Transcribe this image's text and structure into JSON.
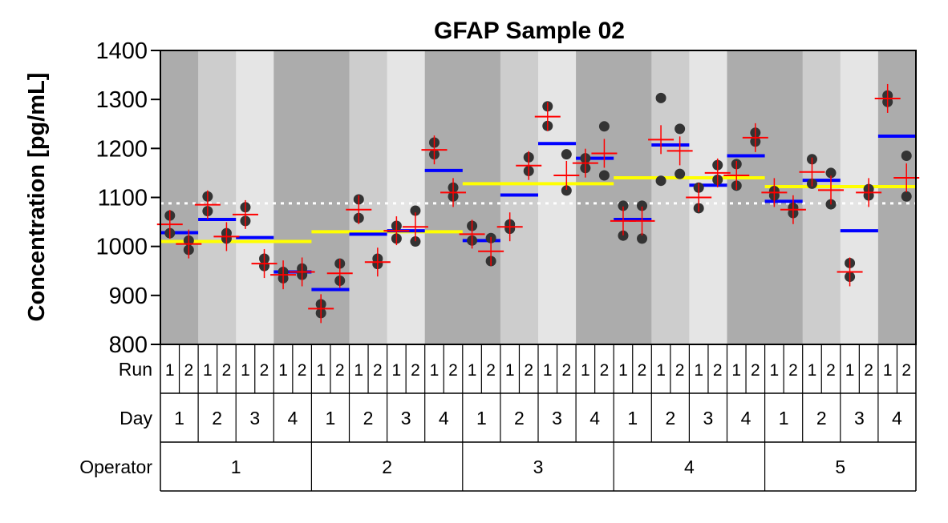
{
  "chart_data": {
    "type": "scatter",
    "title": "GFAP Sample 02",
    "ylabel": "Concentration [pg/mL]",
    "ylim": [
      800,
      1400
    ],
    "yticks": [
      800,
      900,
      1000,
      1100,
      1200,
      1300,
      1400
    ],
    "reference_line": 1088,
    "table": {
      "run_label": "Run",
      "day_label": "Day",
      "operator_label": "Operator",
      "operators": [
        "1",
        "2",
        "3",
        "4",
        "5"
      ],
      "days": [
        "1",
        "2",
        "3",
        "4"
      ],
      "runs": [
        "1",
        "2"
      ]
    },
    "operator_means": [
      1010,
      1030,
      1128,
      1140,
      1122
    ],
    "day_means": [
      [
        1028,
        1055,
        1018,
        948
      ],
      [
        912,
        1025,
        1032,
        1155
      ],
      [
        1012,
        1105,
        1210,
        1180
      ],
      [
        1055,
        1207,
        1125,
        1185
      ],
      [
        1092,
        1135,
        1032,
        1225
      ]
    ],
    "run_means": [
      [
        [
          1045,
          1005
        ],
        [
          1085,
          1020
        ],
        [
          1065,
          965
        ],
        [
          942,
          948
        ]
      ],
      [
        [
          873,
          945
        ],
        [
          1075,
          968
        ],
        [
          1032,
          1040
        ],
        [
          1197,
          1110
        ]
      ],
      [
        [
          1025,
          990
        ],
        [
          1040,
          1165
        ],
        [
          1265,
          1145
        ],
        [
          1170,
          1190
        ]
      ],
      [
        [
          1052,
          1052
        ],
        [
          1218,
          1195
        ],
        [
          1100,
          1150
        ],
        [
          1145,
          1222
        ]
      ],
      [
        [
          1110,
          1075
        ],
        [
          1152,
          1115
        ],
        [
          948,
          1110
        ],
        [
          1302,
          1140
        ]
      ]
    ],
    "points": [
      [
        [
          [
            1063,
            1027
          ],
          [
            1012,
            993
          ]
        ],
        [
          [
            1102,
            1072
          ],
          [
            1027,
            1016
          ]
        ],
        [
          [
            1080,
            1052
          ],
          [
            975,
            960
          ]
        ],
        [
          [
            948,
            935
          ],
          [
            955,
            942
          ]
        ]
      ],
      [
        [
          [
            882,
            864
          ],
          [
            965,
            930
          ]
        ],
        [
          [
            1096,
            1058
          ],
          [
            975,
            964
          ]
        ],
        [
          [
            1042,
            1016
          ],
          [
            1073,
            1010
          ]
        ],
        [
          [
            1212,
            1188
          ],
          [
            1120,
            1102
          ]
        ]
      ],
      [
        [
          [
            1042,
            1012
          ],
          [
            1017,
            970
          ]
        ],
        [
          [
            1045,
            1036
          ],
          [
            1182,
            1154
          ]
        ],
        [
          [
            1286,
            1246
          ],
          [
            1188,
            1114
          ]
        ],
        [
          [
            1180,
            1160
          ],
          [
            1245,
            1145
          ]
        ]
      ],
      [
        [
          [
            1083,
            1022
          ],
          [
            1083,
            1016
          ]
        ],
        [
          [
            1303,
            1134
          ],
          [
            1240,
            1148
          ]
        ],
        [
          [
            1120,
            1078
          ],
          [
            1166,
            1136
          ]
        ],
        [
          [
            1168,
            1124
          ],
          [
            1232,
            1214
          ]
        ]
      ],
      [
        [
          [
            1113,
            1104
          ],
          [
            1079,
            1068
          ]
        ],
        [
          [
            1178,
            1128
          ],
          [
            1150,
            1086
          ]
        ],
        [
          [
            966,
            938
          ],
          [
            1117,
            1104
          ]
        ],
        [
          [
            1308,
            1295
          ],
          [
            1185,
            1102
          ]
        ]
      ]
    ],
    "colors": {
      "operator_mean": "#ffff00",
      "day_mean": "#0000ff",
      "run_mean": "#ff0000",
      "point": "#333333",
      "reference": "#ffffff",
      "day_shades": [
        "#acacac",
        "#cdcdcd",
        "#e5e5e5",
        "#acacac"
      ]
    }
  }
}
